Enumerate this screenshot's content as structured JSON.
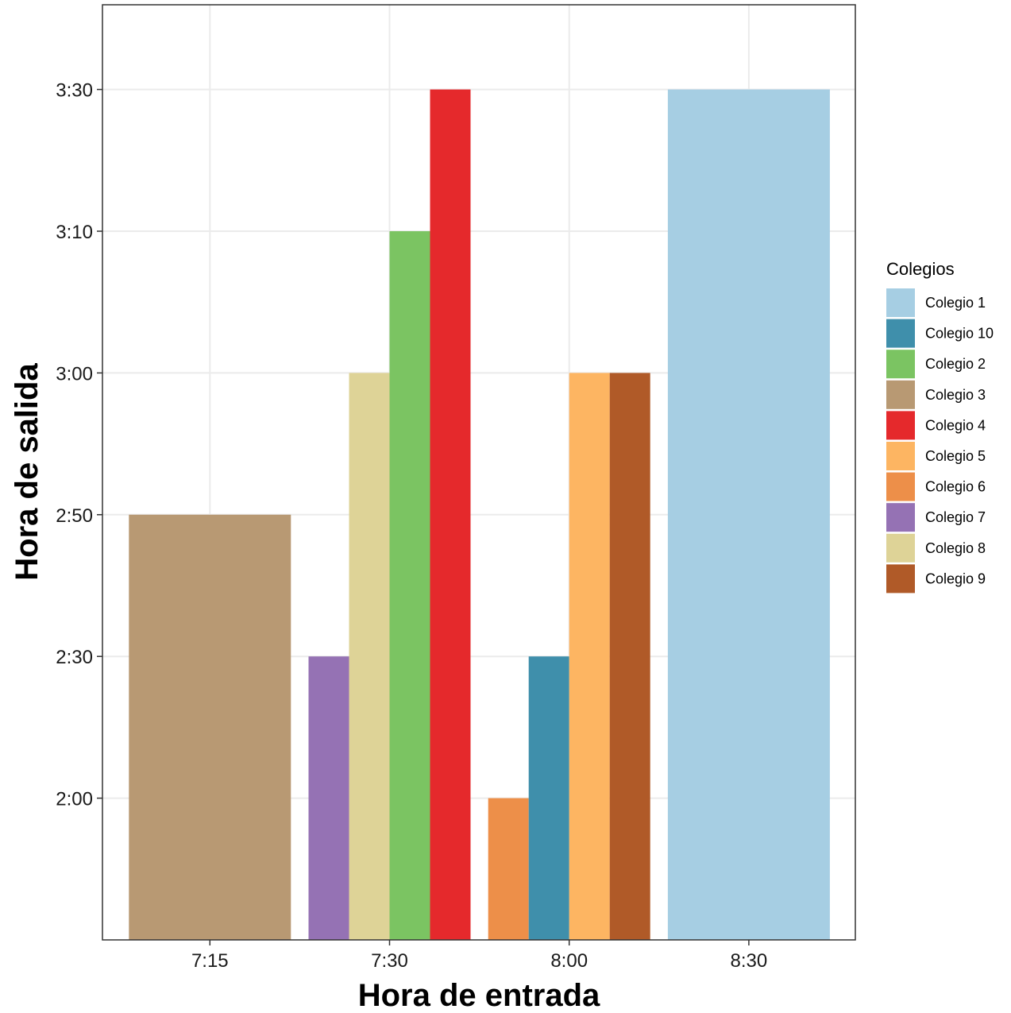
{
  "chart_data": {
    "type": "bar",
    "xlabel": "Hora de entrada",
    "ylabel": "Hora de salida",
    "categories": [
      "7:15",
      "7:30",
      "8:00",
      "8:30"
    ],
    "y_ticks": [
      "2:00",
      "2:30",
      "2:50",
      "3:00",
      "3:10",
      "3:30"
    ],
    "y_order": [
      "1:50",
      "2:00",
      "2:30",
      "2:50",
      "3:00",
      "3:10",
      "3:30",
      "3:40"
    ],
    "grid": true,
    "legend": {
      "title": "Colegios",
      "position": "right",
      "entries": [
        {
          "name": "Colegio 1",
          "color": "#a6cee3"
        },
        {
          "name": "Colegio 10",
          "color": "#3f8fab"
        },
        {
          "name": "Colegio 2",
          "color": "#7bc462"
        },
        {
          "name": "Colegio 3",
          "color": "#b89973"
        },
        {
          "name": "Colegio 4",
          "color": "#e5292c"
        },
        {
          "name": "Colegio 5",
          "color": "#fdb562"
        },
        {
          "name": "Colegio 6",
          "color": "#ed8f49"
        },
        {
          "name": "Colegio 7",
          "color": "#9572b4"
        },
        {
          "name": "Colegio 8",
          "color": "#ded397"
        },
        {
          "name": "Colegio 9",
          "color": "#b05a28"
        }
      ]
    },
    "bars": [
      {
        "category": "7:15",
        "school": "Colegio 3",
        "value": "2:50"
      },
      {
        "category": "7:30",
        "school": "Colegio 7",
        "value": "2:30"
      },
      {
        "category": "7:30",
        "school": "Colegio 8",
        "value": "3:00"
      },
      {
        "category": "7:30",
        "school": "Colegio 2",
        "value": "3:10"
      },
      {
        "category": "7:30",
        "school": "Colegio 4",
        "value": "3:30"
      },
      {
        "category": "8:00",
        "school": "Colegio 6",
        "value": "2:00"
      },
      {
        "category": "8:00",
        "school": "Colegio 10",
        "value": "2:30"
      },
      {
        "category": "8:00",
        "school": "Colegio 5",
        "value": "3:00"
      },
      {
        "category": "8:00",
        "school": "Colegio 9",
        "value": "3:00"
      },
      {
        "category": "8:30",
        "school": "Colegio 1",
        "value": "3:30"
      }
    ]
  }
}
